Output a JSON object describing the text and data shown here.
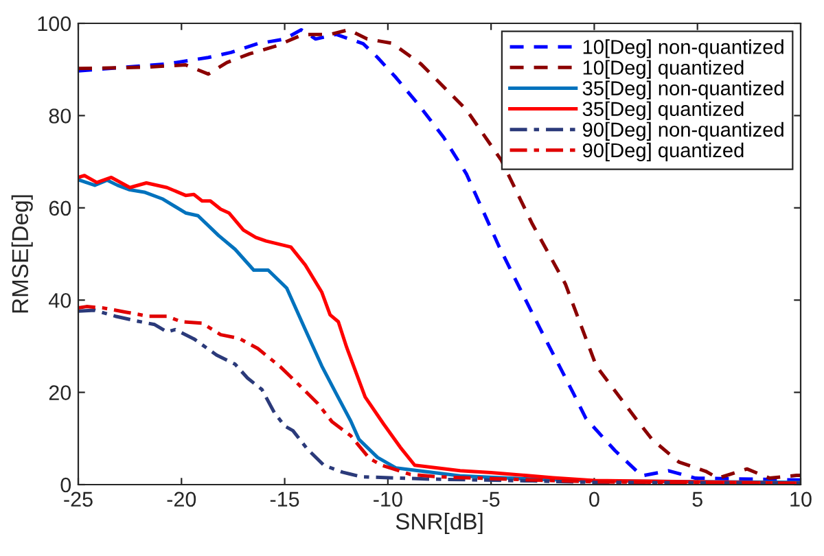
{
  "chart_data": {
    "type": "line",
    "xlabel": "SNR[dB]",
    "ylabel": "RMSE[Deg]",
    "xlim": [
      -25,
      10
    ],
    "xticks": [
      -25,
      -20,
      -15,
      -10,
      -5,
      0,
      5,
      10
    ],
    "ylim": [
      0,
      100
    ],
    "yticks": [
      0,
      20,
      40,
      60,
      80,
      100
    ],
    "grid": false,
    "legend": "top right",
    "marker": "none",
    "series": [
      {
        "name": "10[Deg] non-quantized",
        "color": "#0000ff",
        "line_style": "dashed",
        "x": [
          -25,
          -20.7,
          -18.7,
          -17.6,
          -16.3,
          -15,
          -14.2,
          -13.5,
          -12.5,
          -11.2,
          -10.5,
          -9.6,
          -8.5,
          -7.3,
          -6.2,
          -4.6,
          -3.5,
          -2.6,
          -1.0,
          -0.4,
          1.0,
          2.3,
          3.6,
          4.9,
          10
        ],
        "values": [
          89.7,
          91.2,
          92.6,
          93.7,
          95.6,
          96.6,
          98.6,
          96.6,
          97.6,
          95.6,
          92.6,
          88.2,
          82.3,
          75.3,
          67.4,
          51.5,
          41.6,
          33.6,
          19.7,
          14.3,
          7.4,
          1.9,
          3.0,
          1.4,
          1.0
        ]
      },
      {
        "name": "10[Deg] quantized",
        "color": "#8b0000",
        "line_style": "dashed",
        "x": [
          -25,
          -21.7,
          -19.8,
          -18.7,
          -17.8,
          -16.7,
          -15.4,
          -14.1,
          -12.8,
          -11.9,
          -11.0,
          -9.8,
          -8.4,
          -6.2,
          -4.5,
          -3.0,
          -1.4,
          0.1,
          2.1,
          2.8,
          4.1,
          5.4,
          6.0,
          7.4,
          8.5,
          9.8,
          10
        ],
        "values": [
          90.2,
          90.5,
          91,
          89,
          91.5,
          93.4,
          95.1,
          97.6,
          97.6,
          98.6,
          96.6,
          95.7,
          91.2,
          81.3,
          70.3,
          56.5,
          43.5,
          25.7,
          13.8,
          9.8,
          4.9,
          2.9,
          1.4,
          3.4,
          1.4,
          2.0,
          2.0
        ]
      },
      {
        "name": "35[Deg] non-quantized",
        "color": "#0072bd",
        "line_style": "solid",
        "x": [
          -25,
          -24.2,
          -23.6,
          -23.1,
          -22.5,
          -21.8,
          -20.9,
          -19.8,
          -19.2,
          -18.2,
          -17.4,
          -16.5,
          -15.8,
          -14.9,
          -14.0,
          -13.2,
          -12.5,
          -11.8,
          -11.4,
          -10.5,
          -9.6,
          -6.5,
          -3,
          0,
          10
        ],
        "values": [
          66.1,
          64.9,
          66,
          64.9,
          63.9,
          63.4,
          61.9,
          58.9,
          58.3,
          54,
          51,
          46.5,
          46.5,
          42.6,
          33.6,
          25.7,
          19.7,
          13.8,
          9.8,
          5.9,
          3.6,
          1.9,
          1.2,
          0.8,
          0.5
        ]
      },
      {
        "name": "35[Deg] quantized",
        "color": "#ff0000",
        "line_style": "solid",
        "x": [
          -25,
          -24.7,
          -24.1,
          -23.4,
          -22.5,
          -21.7,
          -20.7,
          -19.8,
          -19.4,
          -19.0,
          -18.6,
          -18.1,
          -17.7,
          -17.0,
          -16.4,
          -15.9,
          -14.7,
          -14.0,
          -13.2,
          -12.8,
          -12.4,
          -12.0,
          -11.1,
          -10.2,
          -9.4,
          -8.7,
          -6.5,
          -5,
          -2,
          0,
          5,
          10
        ],
        "values": [
          66.6,
          67,
          65.5,
          66.6,
          64.4,
          65.4,
          64.4,
          62.7,
          62.9,
          61.5,
          61.5,
          59.7,
          58.9,
          55.2,
          53.6,
          52.8,
          51.5,
          47.6,
          41.7,
          36.8,
          35.3,
          29.8,
          19.0,
          13.1,
          8.1,
          4.2,
          3.0,
          2.6,
          1.5,
          0.9,
          0.6,
          0.3
        ]
      },
      {
        "name": "90[Deg] non-quantized",
        "color": "#2b3a7a",
        "line_style": "dashdot",
        "x": [
          -25,
          -24.2,
          -23.2,
          -22.2,
          -21.3,
          -20.7,
          -20.3,
          -19.4,
          -18.3,
          -17.4,
          -16.8,
          -16.1,
          -15.5,
          -15.0,
          -14.6,
          -13.9,
          -13.1,
          -12.2,
          -11.3,
          -8,
          -3,
          0,
          10
        ],
        "values": [
          37.6,
          37.8,
          36.5,
          35.5,
          34.7,
          33.1,
          33.6,
          31.6,
          28.1,
          26.1,
          23.1,
          20.6,
          15.6,
          12.7,
          11.7,
          7.7,
          4.2,
          2.7,
          1.7,
          1.2,
          0.8,
          0.5,
          0.3
        ]
      },
      {
        "name": "90[Deg] quantized",
        "color": "#e00000",
        "line_style": "dashdot",
        "x": [
          -25,
          -24.6,
          -23.8,
          -22.7,
          -21.6,
          -20.7,
          -20.0,
          -19.0,
          -18.1,
          -17.2,
          -16.3,
          -15.2,
          -14.3,
          -13.4,
          -12.7,
          -11.8,
          -10.9,
          -10.3,
          -8.9,
          -7.6,
          -3,
          0,
          10
        ],
        "values": [
          38.3,
          38.6,
          38.3,
          37.4,
          36.5,
          36.5,
          35.3,
          35.0,
          32.5,
          31.7,
          29.5,
          25.5,
          21.6,
          17.6,
          13.6,
          10.6,
          5.7,
          4.2,
          2.2,
          1.7,
          1.0,
          0.6,
          0.3
        ]
      }
    ]
  }
}
